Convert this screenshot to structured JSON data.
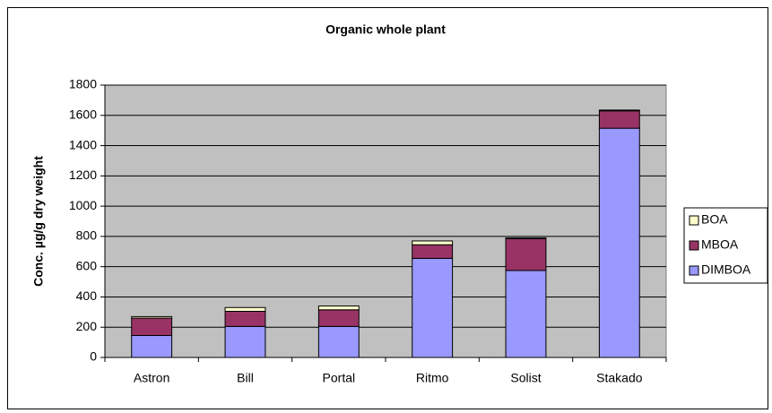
{
  "chart_data": {
    "type": "bar",
    "stacked": true,
    "title": "Organic whole plant",
    "y_label": "Conc. µg/g dry weight",
    "categories": [
      "Astron",
      "Bill",
      "Portal",
      "Ritmo",
      "Solist",
      "Stakado"
    ],
    "series": [
      {
        "name": "DIMBOA",
        "color": "#9999ff",
        "values": [
          145,
          205,
          205,
          655,
          575,
          1515
        ]
      },
      {
        "name": "MBOA",
        "color": "#993366",
        "values": [
          115,
          100,
          110,
          90,
          210,
          115
        ]
      },
      {
        "name": "BOA",
        "color": "#ffffcc",
        "values": [
          10,
          25,
          25,
          25,
          5,
          5
        ]
      }
    ],
    "ylim": [
      0,
      1800
    ],
    "yticks": [
      0,
      200,
      400,
      600,
      800,
      1000,
      1200,
      1400,
      1600,
      1800
    ],
    "legend": "right"
  }
}
